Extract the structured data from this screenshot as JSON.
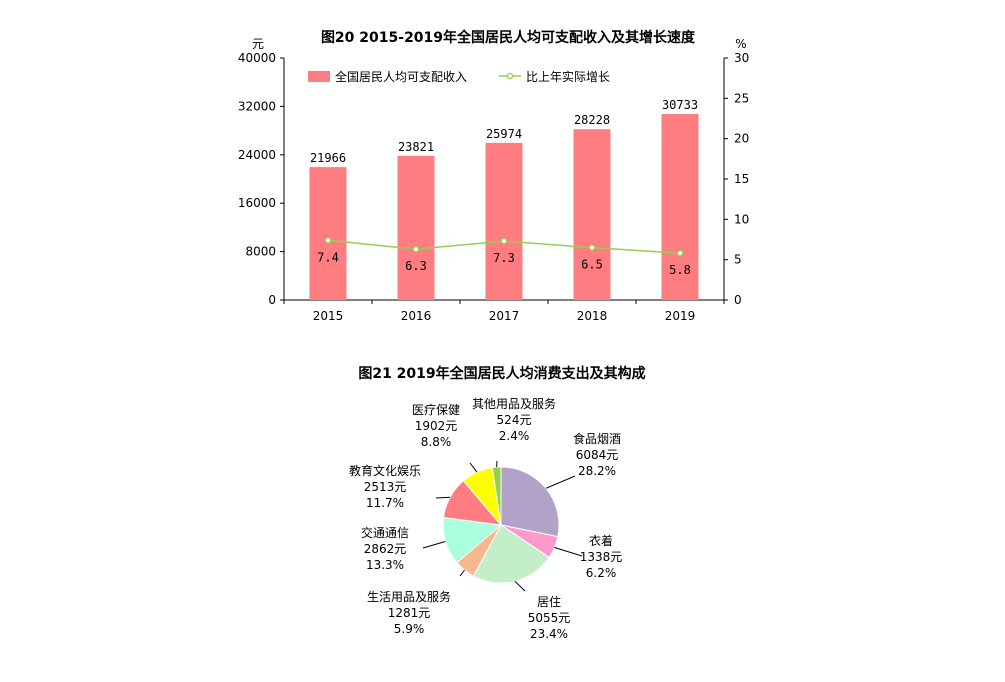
{
  "chart_data": [
    {
      "type": "bar",
      "title": "图20   2015-2019年全国居民人均可支配收入及其增长速度",
      "y_left_unit": "元",
      "y_right_unit": "%",
      "categories": [
        "2015",
        "2016",
        "2017",
        "2018",
        "2019"
      ],
      "ylim_left": [
        0,
        40000
      ],
      "yticks_left": [
        0,
        8000,
        16000,
        24000,
        32000,
        40000
      ],
      "ylim_right": [
        0,
        30
      ],
      "yticks_right": [
        0,
        5,
        10,
        15,
        20,
        25,
        30
      ],
      "series": [
        {
          "name": "全国居民人均可支配收入",
          "kind": "bar",
          "axis": "left",
          "color": "#ff7c80",
          "values": [
            21966,
            23821,
            25974,
            28228,
            30733
          ]
        },
        {
          "name": "比上年实际增长",
          "kind": "line",
          "axis": "right",
          "color": "#92d050",
          "values": [
            7.4,
            6.3,
            7.3,
            6.5,
            5.8
          ]
        }
      ],
      "legend": "top-left"
    },
    {
      "type": "pie",
      "title": "图21   2019年全国居民人均消费支出及其构成",
      "slices": [
        {
          "name": "食品烟酒",
          "amount": "6084元",
          "value": 28.2,
          "percent": "28.2%",
          "color": "#b3a2c7"
        },
        {
          "name": "衣着",
          "amount": "1338元",
          "value": 6.2,
          "percent": "6.2%",
          "color": "#ff99cc"
        },
        {
          "name": "居住",
          "amount": "5055元",
          "value": 23.4,
          "percent": "23.4%",
          "color": "#c3eec8"
        },
        {
          "name": "生活用品及服务",
          "amount": "1281元",
          "value": 5.9,
          "percent": "5.9%",
          "color": "#fab78f"
        },
        {
          "name": "交通通信",
          "amount": "2862元",
          "value": 13.3,
          "percent": "13.3%",
          "color": "#aaffdd"
        },
        {
          "name": "教育文化娱乐",
          "amount": "2513元",
          "value": 11.7,
          "percent": "11.7%",
          "color": "#ff7c80"
        },
        {
          "name": "医疗保健",
          "amount": "1902元",
          "value": 8.8,
          "percent": "8.8%",
          "color": "#ffff00"
        },
        {
          "name": "其他用品及服务",
          "amount": "524元",
          "value": 2.4,
          "percent": "2.4%",
          "color": "#92d050"
        }
      ]
    }
  ]
}
